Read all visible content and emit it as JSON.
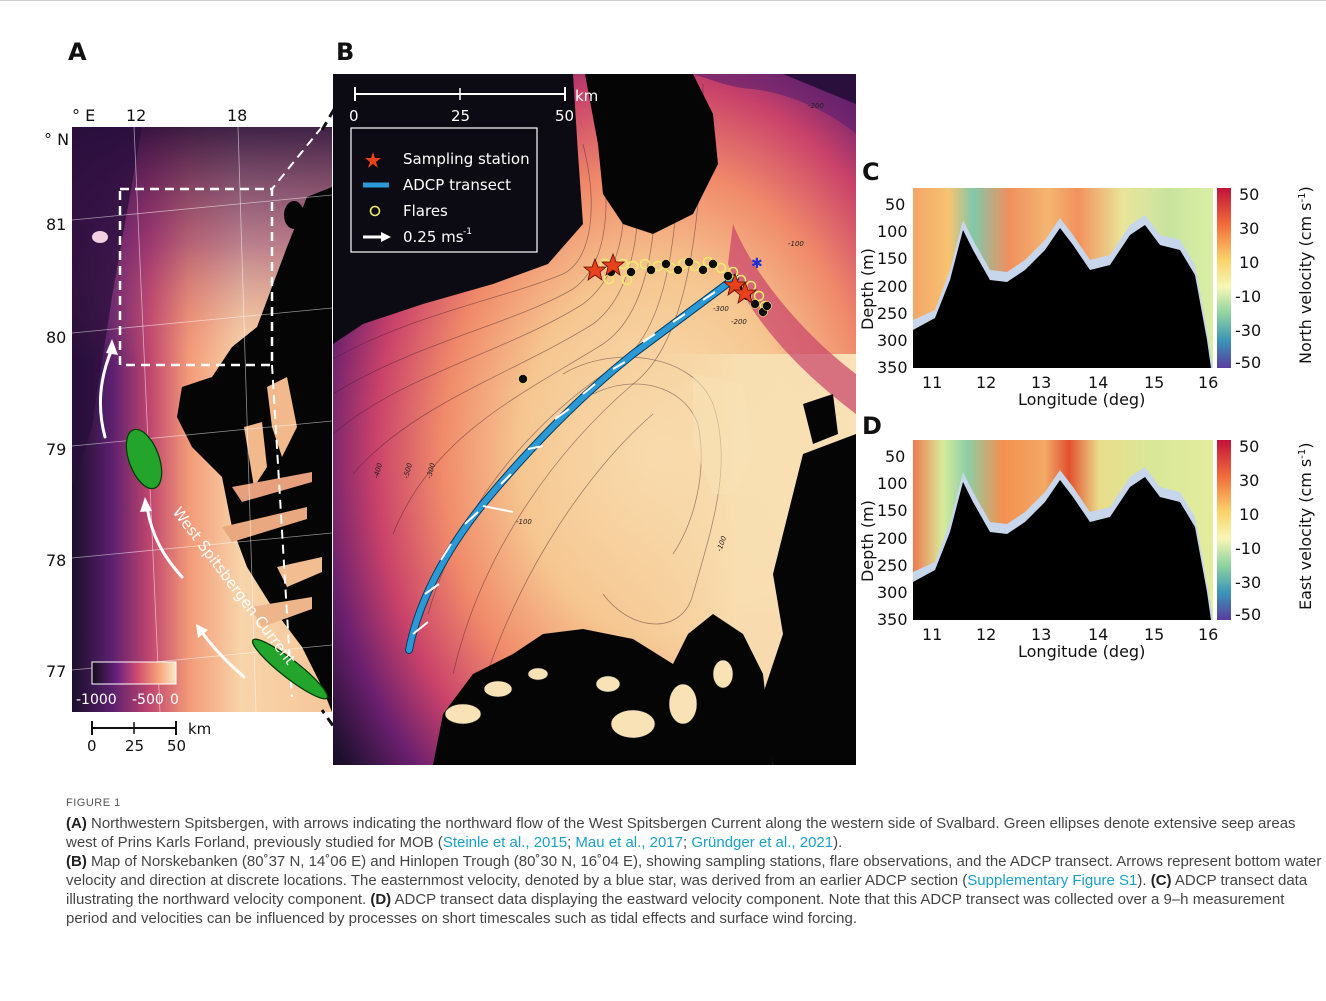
{
  "panels": {
    "a": {
      "letter": "A",
      "lon_unit": "° E",
      "lat_unit": "° N",
      "lon_ticks": [
        "12",
        "18"
      ],
      "lat_ticks": [
        "81",
        "80",
        "79",
        "78",
        "77"
      ],
      "current_label": "West Spitsbergen Current",
      "colorbar_ticks": [
        "-1000",
        "-500",
        "0"
      ],
      "scale_ticks": [
        "0",
        "25",
        "50"
      ],
      "scale_unit": "km"
    },
    "b": {
      "letter": "B",
      "scale_ticks": [
        "0",
        "25",
        "50"
      ],
      "scale_unit": "km",
      "legend": {
        "station": "Sampling station",
        "adcp": "ADCP transect",
        "flares": "Flares",
        "velocity": "0.25 ms",
        "velocity_sup": "-1"
      },
      "contours": [
        "-200",
        "-100",
        "-200",
        "-300",
        "-400",
        "-500",
        "-300",
        "-100",
        "-100"
      ]
    },
    "c": {
      "letter": "C",
      "ylabel": "Depth (m)",
      "xlabel": "Longitude (deg)",
      "cbar_label": "North velocity (cm s",
      "cbar_sup": "-1",
      "cbar_close": ")",
      "y_ticks": [
        "50",
        "100",
        "150",
        "200",
        "250",
        "300",
        "350"
      ],
      "x_ticks": [
        "11",
        "12",
        "13",
        "14",
        "15",
        "16"
      ],
      "cbar_ticks": [
        "50",
        "30",
        "10",
        "-10",
        "-30",
        "-50"
      ]
    },
    "d": {
      "letter": "D",
      "ylabel": "Depth (m)",
      "xlabel": "Longitude (deg)",
      "cbar_label": "East velocity (cm s",
      "cbar_sup": "-1",
      "cbar_close": ")",
      "y_ticks": [
        "50",
        "100",
        "150",
        "200",
        "250",
        "300",
        "350"
      ],
      "x_ticks": [
        "11",
        "12",
        "13",
        "14",
        "15",
        "16"
      ],
      "cbar_ticks": [
        "50",
        "30",
        "10",
        "-10",
        "-30",
        "-50"
      ]
    }
  },
  "caption": {
    "figure_label": "FIGURE 1",
    "a_tag": "(A)",
    "a_text": " Northwestern Spitsbergen, with arrows indicating the northward flow of the West Spitsbergen Current along the western side of Svalbard. Green ellipses denote extensive seep areas west of Prins Karls Forland, previously studied for MOB (",
    "ref1": "Steinle et al., 2015",
    "sep1": "; ",
    "ref2": "Mau et al., 2017",
    "sep2": "; ",
    "ref3": "Gründger et al., 2021",
    "a_end": ").",
    "b_tag": "(B)",
    "b_text": " Map of Norskebanken (80˚37 N, 14˚06 E) and Hinlopen Trough (80˚30 N, 16˚04 E), showing sampling stations, flare observations, and the ADCP transect. Arrows represent bottom water velocity and direction at discrete locations. The easternmost velocity, denoted by a blue star, was derived from an earlier ADCP section (",
    "ref4": "Supplementary Figure S1",
    "b_end": ").",
    "c_tag": "(C)",
    "c_text": " ADCP transect data illustrating the northward velocity component.",
    "d_tag": "(D)",
    "d_text": " ADCP transect data displaying the eastward velocity component. Note that this ADCP transect was collected over a 9–h measurement period and velocities can be influenced by processes on short timescales such as tidal effects and surface wind forcing."
  },
  "colors": {
    "deep": "#0c0a12",
    "shallow": "#f8e2b6",
    "seep": "#2aa12a",
    "transect": "#2a9ad6",
    "station": "#e8421d",
    "land": "#050505"
  }
}
